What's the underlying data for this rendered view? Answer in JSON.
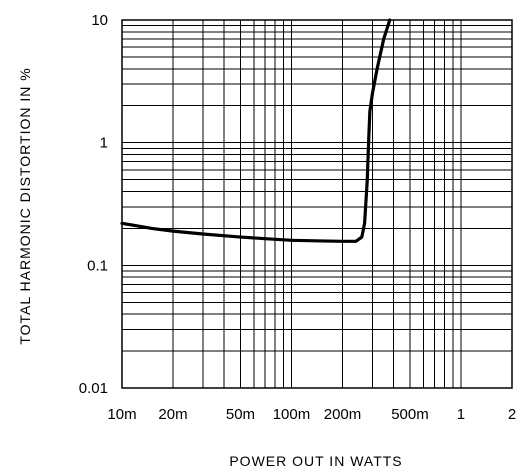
{
  "chart_data": {
    "type": "line",
    "title": "",
    "xlabel": "POWER OUT IN WATTS",
    "ylabel": "TOTAL HARMONIC DISTORTION IN %",
    "x_scale": "log",
    "y_scale": "log",
    "xlim": [
      0.01,
      2
    ],
    "ylim": [
      0.01,
      10
    ],
    "grid": true,
    "x_ticks": [
      {
        "value": 0.01,
        "label": "10m"
      },
      {
        "value": 0.02,
        "label": "20m"
      },
      {
        "value": 0.05,
        "label": "50m"
      },
      {
        "value": 0.1,
        "label": "100m"
      },
      {
        "value": 0.2,
        "label": "200m"
      },
      {
        "value": 0.5,
        "label": "500m"
      },
      {
        "value": 1,
        "label": "1"
      },
      {
        "value": 2,
        "label": "2"
      }
    ],
    "y_ticks": [
      {
        "value": 0.01,
        "label": "0.01"
      },
      {
        "value": 0.1,
        "label": "0.1"
      },
      {
        "value": 1,
        "label": "1"
      },
      {
        "value": 10,
        "label": "10"
      }
    ],
    "series": [
      {
        "x": [
          0.01,
          0.015,
          0.02,
          0.03,
          0.05,
          0.07,
          0.1,
          0.15,
          0.2,
          0.24,
          0.26,
          0.27,
          0.28,
          0.285,
          0.29,
          0.3,
          0.32,
          0.35,
          0.38
        ],
        "y": [
          0.22,
          0.2,
          0.19,
          0.18,
          0.17,
          0.165,
          0.16,
          0.158,
          0.157,
          0.157,
          0.17,
          0.22,
          0.5,
          1.0,
          1.8,
          2.5,
          4.0,
          7.0,
          10.0
        ]
      }
    ]
  }
}
